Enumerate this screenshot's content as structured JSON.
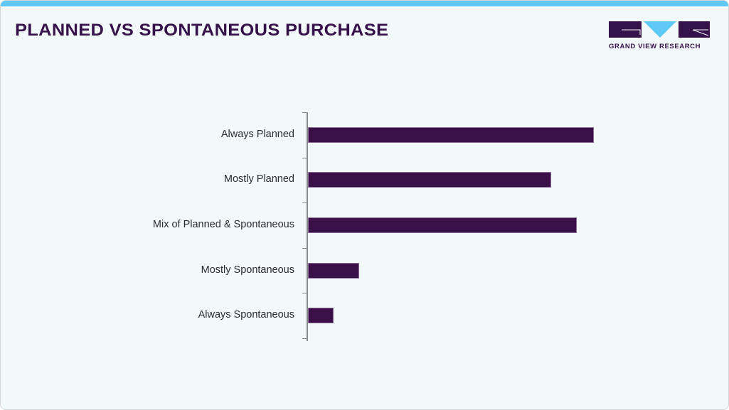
{
  "header": {
    "title": "PLANNED VS SPONTANEOUS PURCHASE",
    "logo_text": "GRAND VIEW RESEARCH"
  },
  "colors": {
    "accent_bar": "#5ec9f5",
    "bar_fill": "#3a1048",
    "title": "#36124a",
    "background": "#f3f8fb"
  },
  "chart_data": {
    "type": "bar",
    "orientation": "horizontal",
    "title": "PLANNED VS SPONTANEOUS PURCHASE",
    "categories": [
      "Always Planned",
      "Mostly Planned",
      "Mix of Planned & Spontaneous",
      "Mostly Spontaneous",
      "Always Spontaneous"
    ],
    "values": [
      100,
      85,
      94,
      18,
      9
    ],
    "xlabel": "",
    "ylabel": "",
    "grid": false,
    "legend": false,
    "value_axis_shown": false,
    "note": "values are relative bar lengths (longest = 100); no numeric axis shown"
  }
}
